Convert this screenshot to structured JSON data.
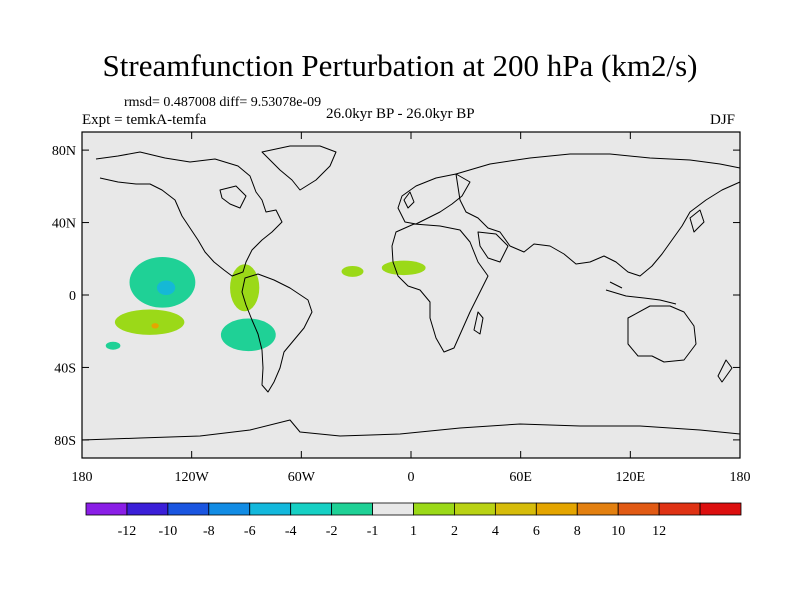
{
  "title": "Streamfunction Perturbation at 200 hPa (km2/s)",
  "stats_text": "rmsd= 0.487008 diff= 9.53078e-09",
  "experiment_text": "Expt = temkA-temfa",
  "period_text": "26.0kyr BP - 26.0kyr BP",
  "season_text": "DJF",
  "map": {
    "lon_ticks": [
      {
        "lon": -180,
        "label": "180"
      },
      {
        "lon": -120,
        "label": "120W"
      },
      {
        "lon": -60,
        "label": "60W"
      },
      {
        "lon": 0,
        "label": "0"
      },
      {
        "lon": 60,
        "label": "60E"
      },
      {
        "lon": 120,
        "label": "120E"
      },
      {
        "lon": 180,
        "label": "180"
      }
    ],
    "lat_ticks": [
      {
        "lat": 80,
        "label": "80N"
      },
      {
        "lat": 40,
        "label": "40N"
      },
      {
        "lat": 0,
        "label": "0"
      },
      {
        "lat": -40,
        "label": "40S"
      },
      {
        "lat": -80,
        "label": "80S"
      }
    ],
    "background_color": "#e8e8e8",
    "anomalies": [
      {
        "name": "central-pacific-low",
        "lon": -136,
        "lat": 7,
        "rlon": 18,
        "rlat": 14,
        "color": "#1fd196"
      },
      {
        "name": "central-pacific-low-core",
        "lon": -134,
        "lat": 4,
        "rlon": 5,
        "rlat": 4,
        "color": "#15b8d6"
      },
      {
        "name": "east-pacific-high-north",
        "lon": -91,
        "lat": 4,
        "rlon": 8,
        "rlat": 13,
        "color": "#9bd918"
      },
      {
        "name": "atlantic-high-west",
        "lon": -32,
        "lat": 13,
        "rlon": 6,
        "rlat": 3,
        "color": "#9bd918"
      },
      {
        "name": "africa-high",
        "lon": -4,
        "lat": 15,
        "rlon": 12,
        "rlat": 4,
        "color": "#9bd918"
      },
      {
        "name": "south-pacific-high",
        "lon": -143,
        "lat": -15,
        "rlon": 19,
        "rlat": 7,
        "color": "#9bd918"
      },
      {
        "name": "south-pacific-high-core",
        "lon": -140,
        "lat": -17,
        "rlon": 2,
        "rlat": 1.5,
        "color": "#e4a500"
      },
      {
        "name": "south-east-pacific-low",
        "lon": -89,
        "lat": -22,
        "rlon": 15,
        "rlat": 9,
        "color": "#1fd196"
      },
      {
        "name": "far-south-pacific-low",
        "lon": -163,
        "lat": -28,
        "rlon": 4,
        "rlat": 2.2,
        "color": "#1fd196"
      }
    ]
  },
  "colorbar": {
    "colors": [
      "#8a1ee6",
      "#3b1fd8",
      "#1a55e0",
      "#128ce4",
      "#13b8dc",
      "#16d0c4",
      "#1fd196",
      "#e8e8e8",
      "#9bd918",
      "#b9d214",
      "#d6bc0a",
      "#e4a500",
      "#e38010",
      "#e15a14",
      "#df3214",
      "#dc0f0f"
    ],
    "labels": [
      "-12",
      "-10",
      "-8",
      "-6",
      "-4",
      "-2",
      "-1",
      "1",
      "2",
      "4",
      "6",
      "8",
      "10",
      "12"
    ]
  }
}
